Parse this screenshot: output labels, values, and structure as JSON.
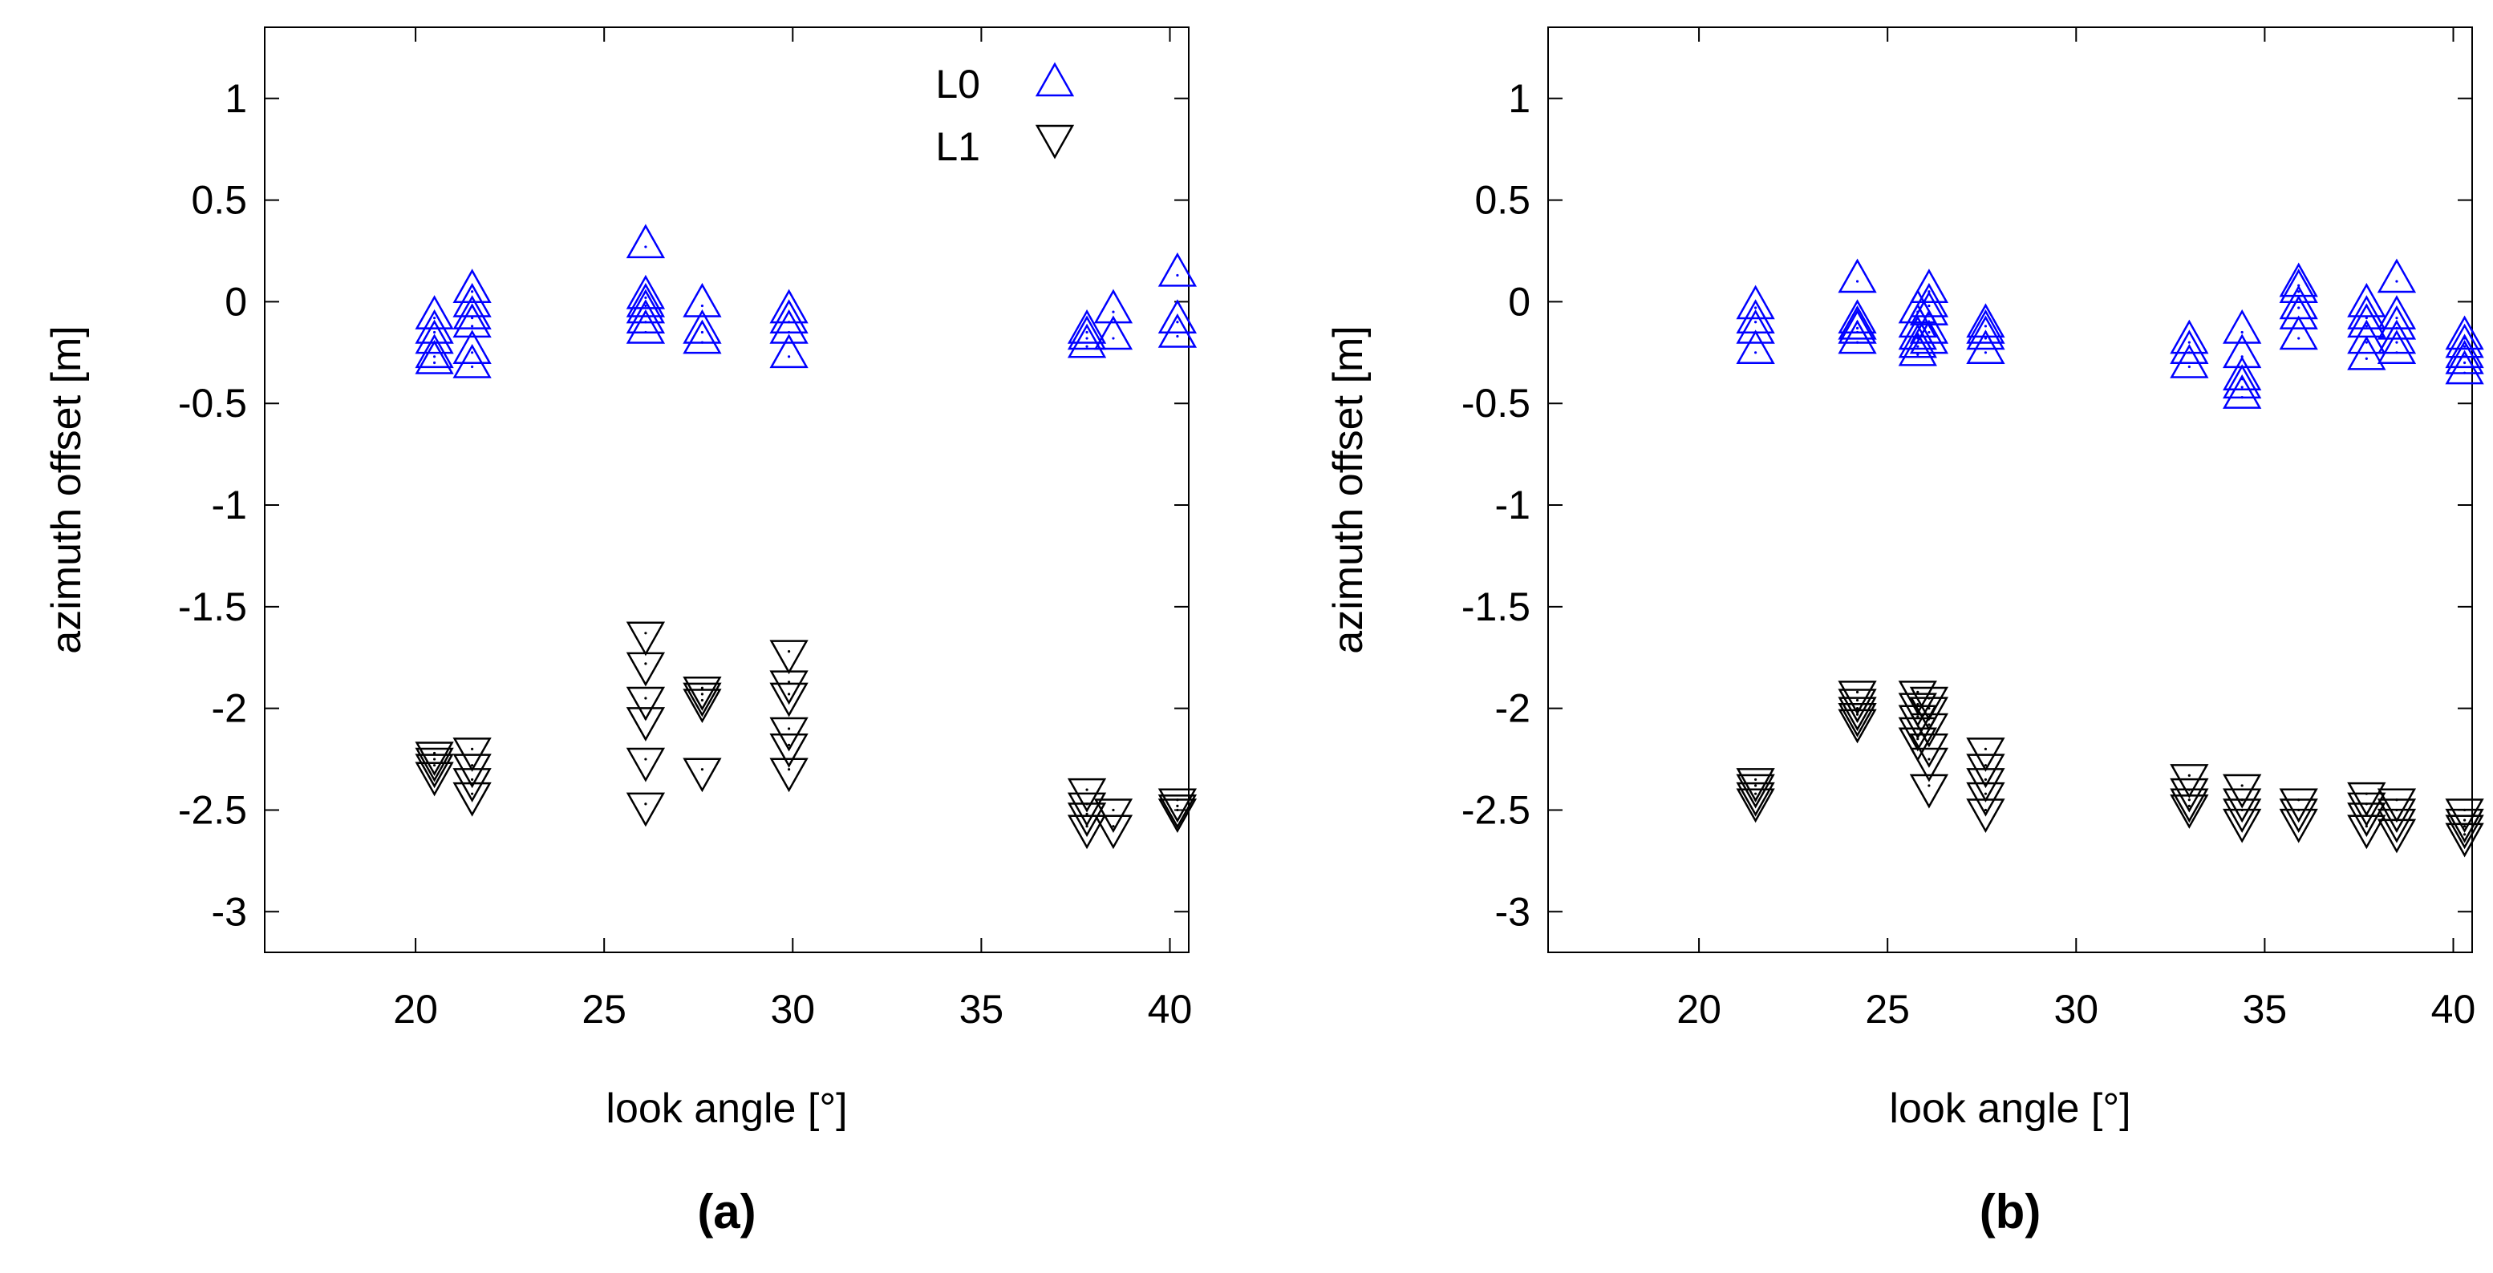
{
  "chart_data": [
    {
      "type": "scatter",
      "panel_label": "(a)",
      "xlabel": "look angle [°]",
      "ylabel": "azimuth offset [m]",
      "xlim": [
        16,
        40.5
      ],
      "ylim": [
        -3.2,
        1.35
      ],
      "xticks": [
        "20",
        "25",
        "30",
        "35",
        "40"
      ],
      "yticks": [
        "1",
        "0.5",
        "0",
        "-0.5",
        "-1",
        "-1.5",
        "-2",
        "-2.5",
        "-3"
      ],
      "grid": false,
      "legend": {
        "position": "top-right",
        "entries": [
          {
            "label": "L0",
            "marker": "triangle-up",
            "color": "#0000ff"
          },
          {
            "label": "L1",
            "marker": "triangle-down",
            "color": "#000000"
          }
        ]
      },
      "series": [
        {
          "name": "L0",
          "marker": "triangle-up",
          "color": "#0000ff",
          "points": [
            [
              20.5,
              -0.08
            ],
            [
              20.5,
              -0.15
            ],
            [
              20.5,
              -0.2
            ],
            [
              20.5,
              -0.27
            ],
            [
              20.5,
              -0.3
            ],
            [
              21.5,
              0.05
            ],
            [
              21.5,
              -0.02
            ],
            [
              21.5,
              -0.08
            ],
            [
              21.5,
              -0.12
            ],
            [
              21.5,
              -0.25
            ],
            [
              21.5,
              -0.32
            ],
            [
              26.1,
              0.27
            ],
            [
              26.1,
              0.02
            ],
            [
              26.1,
              -0.02
            ],
            [
              26.1,
              -0.05
            ],
            [
              26.1,
              -0.1
            ],
            [
              26.1,
              -0.15
            ],
            [
              27.6,
              -0.02
            ],
            [
              27.6,
              -0.15
            ],
            [
              27.6,
              -0.2
            ],
            [
              29.9,
              -0.05
            ],
            [
              29.9,
              -0.1
            ],
            [
              29.9,
              -0.15
            ],
            [
              29.9,
              -0.27
            ],
            [
              37.8,
              -0.15
            ],
            [
              37.8,
              -0.18
            ],
            [
              37.8,
              -0.22
            ],
            [
              38.5,
              -0.05
            ],
            [
              38.5,
              -0.18
            ],
            [
              40.2,
              0.13
            ],
            [
              40.2,
              -0.1
            ],
            [
              40.2,
              -0.17
            ]
          ]
        },
        {
          "name": "L1",
          "marker": "triangle-down",
          "color": "#000000",
          "points": [
            [
              20.5,
              -2.22
            ],
            [
              20.5,
              -2.25
            ],
            [
              20.5,
              -2.28
            ],
            [
              20.5,
              -2.32
            ],
            [
              21.5,
              -2.2
            ],
            [
              21.5,
              -2.28
            ],
            [
              21.5,
              -2.35
            ],
            [
              21.5,
              -2.42
            ],
            [
              26.1,
              -1.63
            ],
            [
              26.1,
              -1.78
            ],
            [
              26.1,
              -1.95
            ],
            [
              26.1,
              -2.05
            ],
            [
              26.1,
              -2.25
            ],
            [
              26.1,
              -2.47
            ],
            [
              27.6,
              -1.9
            ],
            [
              27.6,
              -1.93
            ],
            [
              27.6,
              -1.96
            ],
            [
              27.6,
              -2.3
            ],
            [
              29.9,
              -1.72
            ],
            [
              29.9,
              -1.87
            ],
            [
              29.9,
              -1.93
            ],
            [
              29.9,
              -2.1
            ],
            [
              29.9,
              -2.18
            ],
            [
              29.9,
              -2.3
            ],
            [
              37.8,
              -2.4
            ],
            [
              37.8,
              -2.47
            ],
            [
              37.8,
              -2.52
            ],
            [
              37.8,
              -2.58
            ],
            [
              38.5,
              -2.5
            ],
            [
              38.5,
              -2.58
            ],
            [
              40.2,
              -2.45
            ],
            [
              40.2,
              -2.48
            ],
            [
              40.2,
              -2.5
            ]
          ]
        }
      ]
    },
    {
      "type": "scatter",
      "panel_label": "(b)",
      "xlabel": "look angle [°]",
      "ylabel": "azimuth offset [m]",
      "xlim": [
        16,
        40.5
      ],
      "ylim": [
        -3.2,
        1.35
      ],
      "xticks": [
        "20",
        "25",
        "30",
        "35",
        "40"
      ],
      "yticks": [
        "1",
        "0.5",
        "0",
        "-0.5",
        "-1",
        "-1.5",
        "-2",
        "-2.5",
        "-3"
      ],
      "grid": false,
      "series": [
        {
          "name": "L0",
          "marker": "triangle-up",
          "color": "#0000ff",
          "points": [
            [
              21.5,
              -0.03
            ],
            [
              21.5,
              -0.1
            ],
            [
              21.5,
              -0.15
            ],
            [
              21.5,
              -0.25
            ],
            [
              24.2,
              0.1
            ],
            [
              24.2,
              -0.1
            ],
            [
              24.2,
              -0.13
            ],
            [
              24.2,
              -0.15
            ],
            [
              24.2,
              -0.2
            ],
            [
              25.8,
              -0.05
            ],
            [
              25.8,
              -0.12
            ],
            [
              25.8,
              -0.18
            ],
            [
              25.8,
              -0.22
            ],
            [
              25.8,
              -0.26
            ],
            [
              26.1,
              0.05
            ],
            [
              26.1,
              -0.02
            ],
            [
              26.1,
              -0.06
            ],
            [
              26.1,
              -0.15
            ],
            [
              26.1,
              -0.2
            ],
            [
              27.6,
              -0.12
            ],
            [
              27.6,
              -0.15
            ],
            [
              27.6,
              -0.18
            ],
            [
              27.6,
              -0.25
            ],
            [
              33.0,
              -0.2
            ],
            [
              33.0,
              -0.25
            ],
            [
              33.0,
              -0.32
            ],
            [
              34.4,
              -0.15
            ],
            [
              34.4,
              -0.27
            ],
            [
              34.4,
              -0.38
            ],
            [
              34.4,
              -0.42
            ],
            [
              34.4,
              -0.47
            ],
            [
              35.9,
              0.08
            ],
            [
              35.9,
              0.05
            ],
            [
              35.9,
              -0.03
            ],
            [
              35.9,
              -0.08
            ],
            [
              35.9,
              -0.18
            ],
            [
              37.7,
              -0.02
            ],
            [
              37.7,
              -0.08
            ],
            [
              37.7,
              -0.12
            ],
            [
              37.7,
              -0.2
            ],
            [
              37.7,
              -0.28
            ],
            [
              38.5,
              0.1
            ],
            [
              38.5,
              -0.08
            ],
            [
              38.5,
              -0.13
            ],
            [
              38.5,
              -0.2
            ],
            [
              38.5,
              -0.25
            ],
            [
              40.3,
              -0.18
            ],
            [
              40.3,
              -0.22
            ],
            [
              40.3,
              -0.27
            ],
            [
              40.3,
              -0.3
            ],
            [
              40.3,
              -0.35
            ]
          ]
        },
        {
          "name": "L1",
          "marker": "triangle-down",
          "color": "#000000",
          "points": [
            [
              21.5,
              -2.35
            ],
            [
              21.5,
              -2.38
            ],
            [
              21.5,
              -2.42
            ],
            [
              21.5,
              -2.45
            ],
            [
              24.2,
              -1.92
            ],
            [
              24.2,
              -1.96
            ],
            [
              24.2,
              -2.0
            ],
            [
              24.2,
              -2.03
            ],
            [
              24.2,
              -2.06
            ],
            [
              25.8,
              -1.92
            ],
            [
              25.8,
              -1.98
            ],
            [
              25.8,
              -2.04
            ],
            [
              25.8,
              -2.1
            ],
            [
              25.8,
              -2.15
            ],
            [
              26.1,
              -1.95
            ],
            [
              26.1,
              -2.0
            ],
            [
              26.1,
              -2.08
            ],
            [
              26.1,
              -2.18
            ],
            [
              26.1,
              -2.25
            ],
            [
              26.1,
              -2.38
            ],
            [
              27.6,
              -2.2
            ],
            [
              27.6,
              -2.28
            ],
            [
              27.6,
              -2.35
            ],
            [
              27.6,
              -2.42
            ],
            [
              27.6,
              -2.5
            ],
            [
              33.0,
              -2.33
            ],
            [
              33.0,
              -2.4
            ],
            [
              33.0,
              -2.45
            ],
            [
              33.0,
              -2.48
            ],
            [
              34.4,
              -2.38
            ],
            [
              34.4,
              -2.45
            ],
            [
              34.4,
              -2.5
            ],
            [
              34.4,
              -2.55
            ],
            [
              35.9,
              -2.45
            ],
            [
              35.9,
              -2.5
            ],
            [
              35.9,
              -2.55
            ],
            [
              37.7,
              -2.42
            ],
            [
              37.7,
              -2.47
            ],
            [
              37.7,
              -2.52
            ],
            [
              37.7,
              -2.58
            ],
            [
              38.5,
              -2.45
            ],
            [
              38.5,
              -2.5
            ],
            [
              38.5,
              -2.55
            ],
            [
              38.5,
              -2.6
            ],
            [
              40.3,
              -2.5
            ],
            [
              40.3,
              -2.55
            ],
            [
              40.3,
              -2.58
            ],
            [
              40.3,
              -2.62
            ]
          ]
        }
      ]
    }
  ]
}
